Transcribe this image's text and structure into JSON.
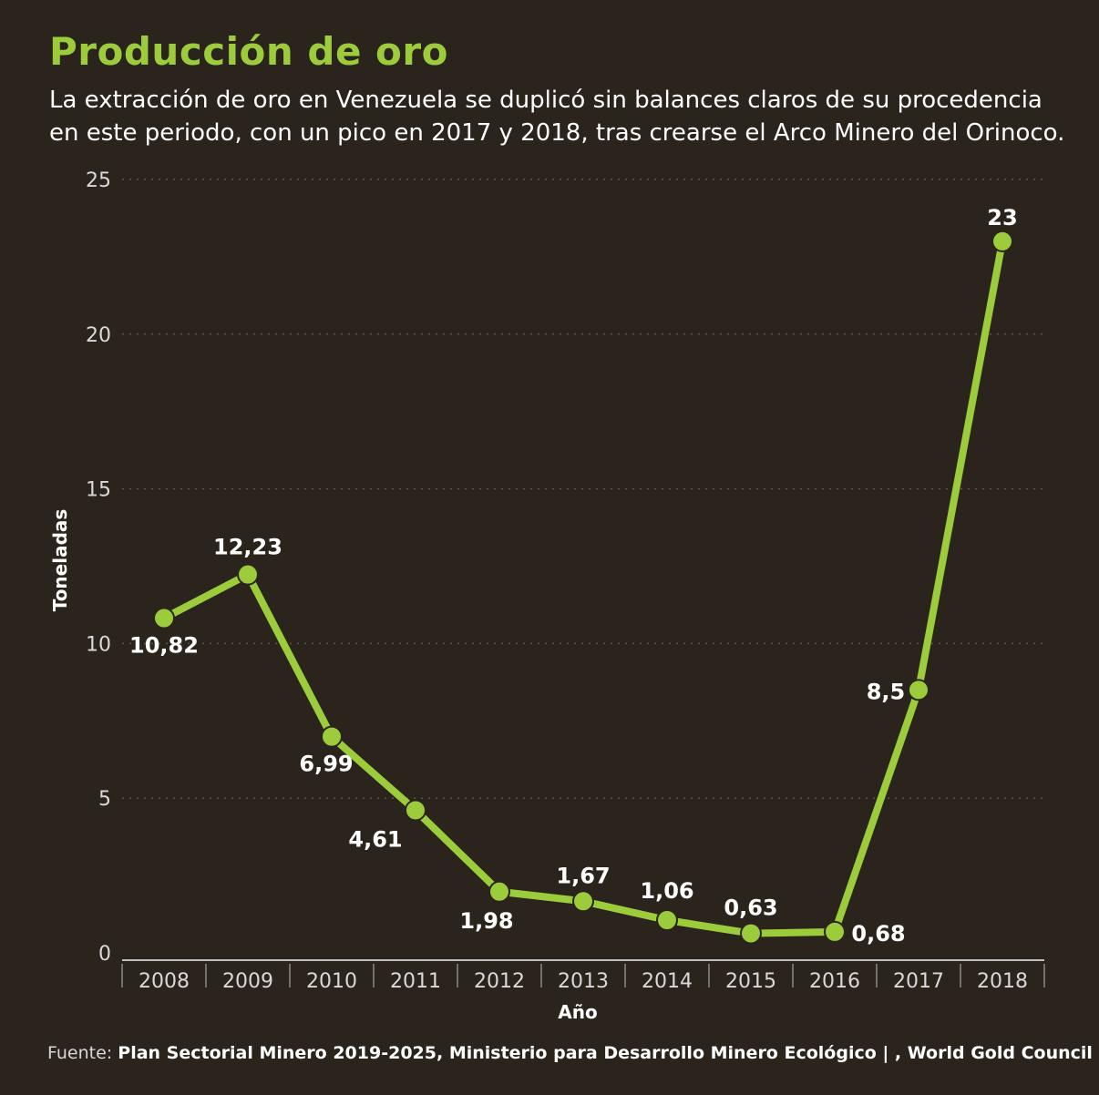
{
  "title": "Producción de oro",
  "subtitle": "La extracción de oro en Venezuela se duplicó sin balances claros de su procedencia en este periodo, con un pico en 2017 y 2018, tras crearse el Arco Minero del Orinoco.",
  "source": {
    "label": "Fuente:",
    "text": "Plan Sectorial Minero 2019-2025, Ministerio para Desarrollo Minero Ecológico | , World Gold Council"
  },
  "colors": {
    "background": "#2b241d",
    "accent": "#9ccc3c",
    "grid": "#5a5148",
    "text": "#ffffff"
  },
  "chart_data": {
    "type": "line",
    "title": "Producción de oro",
    "xlabel": "Año",
    "ylabel": "Toneladas",
    "categories": [
      "2008",
      "2009",
      "2010",
      "2011",
      "2012",
      "2013",
      "2014",
      "2015",
      "2016",
      "2017",
      "2018"
    ],
    "values": [
      10.82,
      12.23,
      6.99,
      4.61,
      1.98,
      1.67,
      1.06,
      0.63,
      0.68,
      8.5,
      23
    ],
    "data_labels": [
      "10,82",
      "12,23",
      "6,99",
      "4,61",
      "1,98",
      "1,67",
      "1,06",
      "0,63",
      "0,68",
      "8,5",
      "23"
    ],
    "y_ticks": [
      0,
      5,
      10,
      15,
      20,
      25
    ],
    "ylim": [
      0,
      25
    ],
    "grid": true,
    "legend": "none"
  }
}
